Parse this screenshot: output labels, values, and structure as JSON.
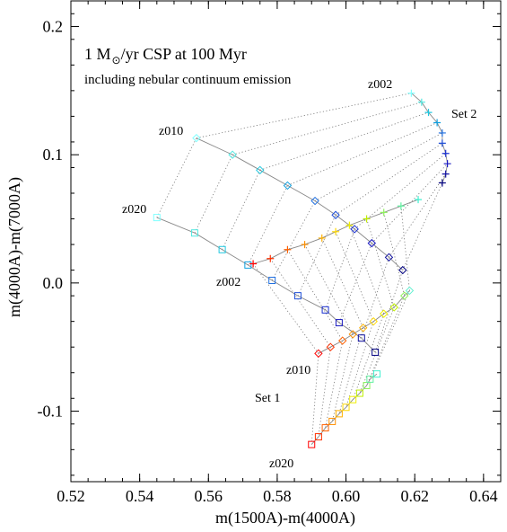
{
  "chart_data": {
    "type": "scatter",
    "xlabel": "m(1500A)-m(4000A)",
    "ylabel": "m(4000A)-m(7000A)",
    "xlim": [
      0.52,
      0.645
    ],
    "ylim": [
      -0.155,
      0.22
    ],
    "xticks": [
      0.52,
      0.54,
      0.56,
      0.58,
      0.6,
      0.62,
      0.64
    ],
    "xtick_labels": [
      "0.52",
      "0.54",
      "0.56",
      "0.58",
      "0.60",
      "0.62",
      "0.64"
    ],
    "yticks": [
      -0.1,
      0.0,
      0.1,
      0.2
    ],
    "ytick_labels": [
      "-0.1",
      "0.0",
      "0.1",
      "0.2"
    ],
    "grid": false,
    "title_line1_pre": "1 M",
    "title_line1_post": "/yr CSP at 100 Myr",
    "title_line2": "including nebular continuum emission",
    "annotations": {
      "z002_set2": "z002",
      "set2": "Set 2",
      "z010_set2": "z010",
      "z020_set2": "z020",
      "z002_set1": "z002",
      "z010_set1": "z010",
      "set1": "Set 1",
      "z020_set1": "z020"
    },
    "series": [
      {
        "name": "z020",
        "marker": "square",
        "set": 2,
        "points": [
          [
            0.545,
            0.051
          ],
          [
            0.556,
            0.039
          ],
          [
            0.564,
            0.026
          ],
          [
            0.5715,
            0.014
          ],
          [
            0.5785,
            0.002
          ],
          [
            0.586,
            -0.01
          ],
          [
            0.594,
            -0.021
          ],
          [
            0.598,
            -0.031
          ],
          [
            0.6045,
            -0.043
          ],
          [
            0.6085,
            -0.054
          ]
        ],
        "colors": [
          "#80ffff",
          "#50e8e0",
          "#20c8e0",
          "#10a0e0",
          "#1f6fe0",
          "#1f4fd8",
          "#1a30d0",
          "#1818c0",
          "#1010a0",
          "#000080"
        ]
      },
      {
        "name": "z010",
        "marker": "diamond",
        "set": 2,
        "points": [
          [
            0.5565,
            0.113
          ],
          [
            0.567,
            0.1
          ],
          [
            0.575,
            0.088
          ],
          [
            0.583,
            0.076
          ],
          [
            0.591,
            0.064
          ],
          [
            0.597,
            0.053
          ],
          [
            0.6025,
            0.042
          ],
          [
            0.6075,
            0.031
          ],
          [
            0.6125,
            0.02
          ],
          [
            0.6165,
            0.01
          ]
        ],
        "colors": [
          "#80ffff",
          "#50e8e0",
          "#20c8e0",
          "#10a0e0",
          "#1f6fe0",
          "#1f4fd8",
          "#1a30d0",
          "#1818c0",
          "#1010a0",
          "#000080"
        ]
      },
      {
        "name": "z002",
        "marker": "plus",
        "set": 2,
        "points": [
          [
            0.619,
            0.148
          ],
          [
            0.622,
            0.141
          ],
          [
            0.624,
            0.133
          ],
          [
            0.6265,
            0.125
          ],
          [
            0.628,
            0.117
          ],
          [
            0.628,
            0.109
          ],
          [
            0.629,
            0.101
          ],
          [
            0.6295,
            0.093
          ],
          [
            0.629,
            0.085
          ],
          [
            0.628,
            0.078
          ]
        ],
        "colors": [
          "#80ffff",
          "#50e8e0",
          "#20c8e0",
          "#10a0e0",
          "#1f6fe0",
          "#1f4fd8",
          "#1a30d0",
          "#1818c0",
          "#1010a0",
          "#000080"
        ]
      },
      {
        "name": "z002",
        "marker": "plus",
        "set": 1,
        "points": [
          [
            0.573,
            0.015
          ],
          [
            0.578,
            0.019
          ],
          [
            0.583,
            0.026
          ],
          [
            0.588,
            0.03
          ],
          [
            0.593,
            0.035
          ],
          [
            0.597,
            0.04
          ],
          [
            0.601,
            0.045
          ],
          [
            0.606,
            0.05
          ],
          [
            0.611,
            0.055
          ],
          [
            0.616,
            0.06
          ],
          [
            0.621,
            0.065
          ]
        ],
        "colors": [
          "#ff0000",
          "#ff3000",
          "#ff6000",
          "#ff9000",
          "#ffb000",
          "#ffd800",
          "#f0f000",
          "#c0f000",
          "#90f060",
          "#60f0a0",
          "#40f0d0"
        ]
      },
      {
        "name": "z010",
        "marker": "diamond",
        "set": 1,
        "points": [
          [
            0.592,
            -0.055
          ],
          [
            0.5955,
            -0.05
          ],
          [
            0.599,
            -0.045
          ],
          [
            0.602,
            -0.04
          ],
          [
            0.605,
            -0.035
          ],
          [
            0.608,
            -0.03
          ],
          [
            0.611,
            -0.024
          ],
          [
            0.614,
            -0.019
          ],
          [
            0.617,
            -0.01
          ],
          [
            0.6185,
            -0.006
          ]
        ],
        "colors": [
          "#ff0000",
          "#ff3000",
          "#ff6000",
          "#ff9000",
          "#ffb000",
          "#ffd800",
          "#f0f000",
          "#c0f000",
          "#90f060",
          "#60f0d0"
        ]
      },
      {
        "name": "z020",
        "marker": "square",
        "set": 1,
        "points": [
          [
            0.59,
            -0.126
          ],
          [
            0.592,
            -0.12
          ],
          [
            0.594,
            -0.113
          ],
          [
            0.596,
            -0.108
          ],
          [
            0.598,
            -0.102
          ],
          [
            0.6,
            -0.097
          ],
          [
            0.602,
            -0.091
          ],
          [
            0.604,
            -0.086
          ],
          [
            0.606,
            -0.08
          ],
          [
            0.607,
            -0.075
          ],
          [
            0.609,
            -0.071
          ]
        ],
        "colors": [
          "#ff0000",
          "#ff3000",
          "#ff6000",
          "#ff9000",
          "#ffb000",
          "#ffd800",
          "#f0f000",
          "#c0f000",
          "#90f060",
          "#60f0a0",
          "#40f0d0"
        ]
      }
    ]
  }
}
